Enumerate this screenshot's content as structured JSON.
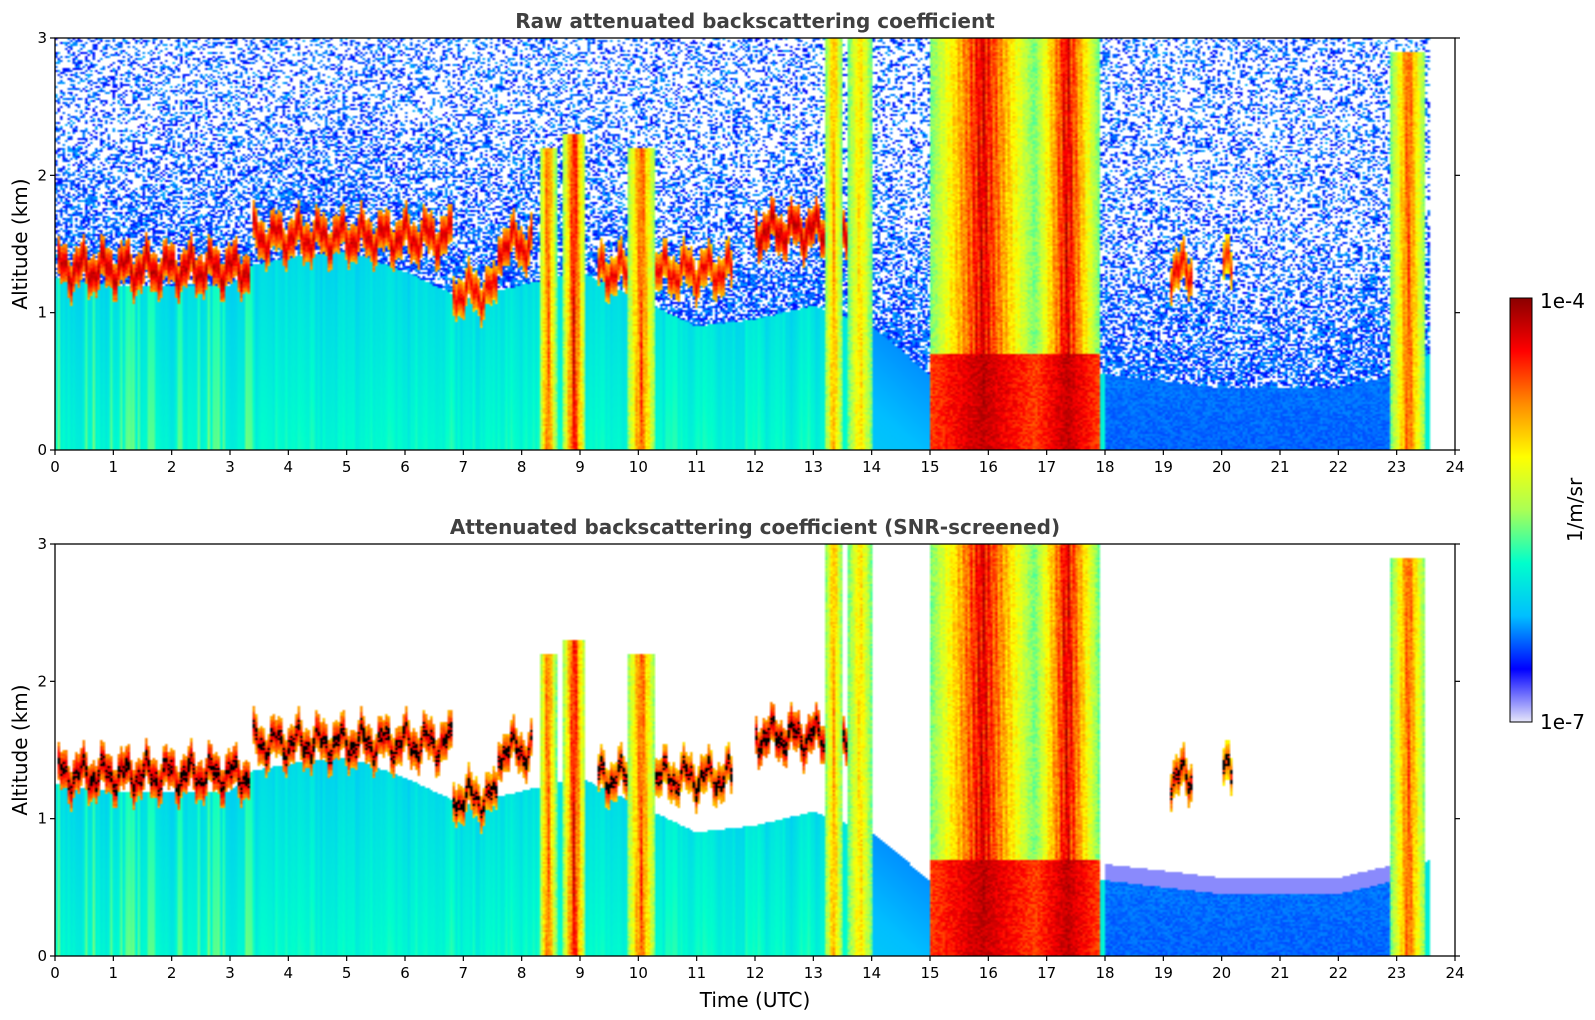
{
  "chart_data": [
    {
      "type": "heatmap",
      "title": "Raw attenuated backscattering coefficient",
      "xlabel": "",
      "ylabel": "Altitude (km)",
      "xlim": [
        0,
        24
      ],
      "ylim": [
        0,
        3
      ],
      "xticks": [
        0,
        1,
        2,
        3,
        4,
        5,
        6,
        7,
        8,
        9,
        10,
        11,
        12,
        13,
        14,
        15,
        16,
        17,
        18,
        19,
        20,
        21,
        22,
        23,
        24
      ],
      "yticks": [
        0,
        1,
        2,
        3
      ],
      "screened": false,
      "features": {
        "noise_boundary_km": [
          [
            0,
            1.25
          ],
          [
            1,
            1.2
          ],
          [
            2,
            1.2
          ],
          [
            3,
            1.2
          ],
          [
            3.4,
            1.35
          ],
          [
            4,
            1.4
          ],
          [
            5,
            1.45
          ],
          [
            6,
            1.3
          ],
          [
            7,
            1.1
          ],
          [
            8,
            1.2
          ],
          [
            9,
            1.3
          ],
          [
            10,
            1.1
          ],
          [
            11,
            0.9
          ],
          [
            12,
            0.95
          ],
          [
            13,
            1.05
          ],
          [
            14,
            0.9
          ],
          [
            15,
            0.55
          ],
          [
            16,
            0.5
          ],
          [
            17,
            0.55
          ],
          [
            18,
            0.55
          ],
          [
            19,
            0.5
          ],
          [
            20,
            0.45
          ],
          [
            21,
            0.45
          ],
          [
            22,
            0.45
          ],
          [
            23,
            0.55
          ],
          [
            23.55,
            0.7
          ]
        ],
        "cloud_layers": [
          {
            "t": [
              0.05,
              3.35
            ],
            "alt_km": 1.32,
            "level": 0.95
          },
          {
            "t": [
              3.4,
              6.8
            ],
            "alt_km": 1.55,
            "level": 0.93
          },
          {
            "t": [
              6.8,
              7.6
            ],
            "alt_km": 1.15,
            "level": 0.9
          },
          {
            "t": [
              7.6,
              8.2
            ],
            "alt_km": 1.5,
            "level": 0.92
          },
          {
            "t": [
              9.3,
              11.6
            ],
            "alt_km": 1.3,
            "level": 0.9
          },
          {
            "t": [
              12.0,
              13.7
            ],
            "alt_km": 1.6,
            "level": 0.95
          },
          {
            "t": [
              19.1,
              19.5
            ],
            "alt_km": 1.3,
            "level": 0.9
          },
          {
            "t": [
              20.0,
              20.2
            ],
            "alt_km": 1.35,
            "level": 0.85
          }
        ],
        "precipitation_shafts": [
          {
            "t": [
              8.3,
              8.6
            ],
            "top_km": 2.2,
            "level": 0.85
          },
          {
            "t": [
              8.7,
              9.1
            ],
            "top_km": 2.3,
            "level": 0.95
          },
          {
            "t": [
              9.8,
              10.3
            ],
            "top_km": 2.2,
            "level": 0.85
          },
          {
            "t": [
              13.2,
              13.5
            ],
            "top_km": 3.0,
            "level": 0.75
          },
          {
            "t": [
              13.6,
              14.0
            ],
            "top_km": 3.0,
            "level": 0.7
          },
          {
            "t": [
              15.0,
              16.8
            ],
            "top_km": 3.0,
            "level": 0.97
          },
          {
            "t": [
              16.8,
              17.9
            ],
            "top_km": 3.0,
            "level": 0.97
          },
          {
            "t": [
              22.9,
              23.5
            ],
            "top_km": 2.9,
            "level": 0.85
          }
        ],
        "data_end_utc": 23.55
      }
    },
    {
      "type": "heatmap",
      "title": "Attenuated backscattering coefficient (SNR-screened)",
      "xlabel": "Time (UTC)",
      "ylabel": "Altitude (km)",
      "xlim": [
        0,
        24
      ],
      "ylim": [
        0,
        3
      ],
      "xticks": [
        0,
        1,
        2,
        3,
        4,
        5,
        6,
        7,
        8,
        9,
        10,
        11,
        12,
        13,
        14,
        15,
        16,
        17,
        18,
        19,
        20,
        21,
        22,
        23,
        24
      ],
      "yticks": [
        0,
        1,
        2,
        3
      ],
      "screened": true
    }
  ],
  "colorbar": {
    "label": "1/m/sr",
    "max_label": "1e-4",
    "min_label": "1e-7",
    "colormap": "jet",
    "colors": [
      "#e6e6fa",
      "#0000ff",
      "#00bfff",
      "#00ffcc",
      "#aaff55",
      "#ffff00",
      "#ff8c00",
      "#ff0000",
      "#8b0000"
    ]
  }
}
